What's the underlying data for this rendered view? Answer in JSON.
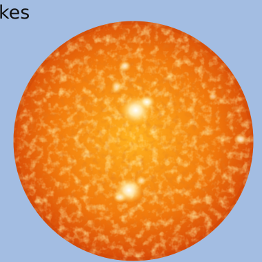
{
  "caption": "kes",
  "colors": {
    "background": "#a3bde2",
    "sun_core": "#ffb21e",
    "sun_mid": "#f27a0c",
    "sun_edge": "#d94a08",
    "granule_light": "#ffd35c",
    "granule_dark": "#b83a04",
    "flare": "#fff6cf",
    "text": "#111111"
  },
  "icons": {
    "sun": "sun-disk-icon"
  }
}
